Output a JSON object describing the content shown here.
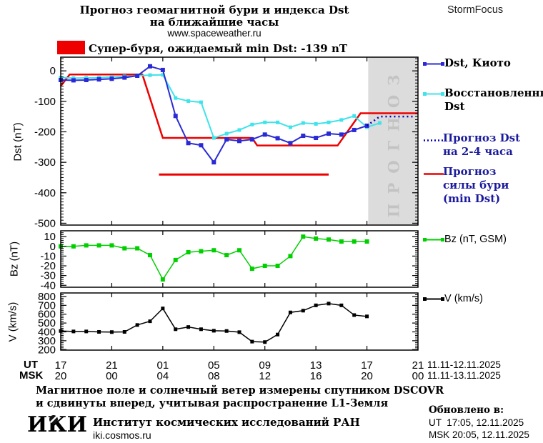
{
  "header": {
    "title_line1": "Прогноз геомагнитной бури и индекса Dst",
    "title_line2": "на ближайшие часы",
    "website": "www.spaceweather.ru",
    "brand": "StormFocus"
  },
  "warning": {
    "label": "Супер-буря, ожидаемый min Dst: -139 nT",
    "color": "#ee0000"
  },
  "forecast_band": {
    "label": "ПРОГНОЗ",
    "start_hour": 24.1,
    "fill": "#dcdcdc",
    "text_color": "#c3c3c3"
  },
  "legend_main": [
    {
      "label": "Dst, Киото",
      "color": "#2a2ad4",
      "text_color": "#000000"
    },
    {
      "label": "Восстановленный\nDst",
      "color": "#3fe3ea",
      "text_color": "#000000"
    },
    {
      "label": "Прогноз Dst\nна 2-4 часа",
      "color": "#0000bb",
      "text_color": "#1b1b9e"
    },
    {
      "label": "Прогноз\nсилы бури\n(min Dst)",
      "color": "#ee0000",
      "text_color": "#1b1b9e"
    }
  ],
  "legend_bz": {
    "label": "Bz (nT, GSM)",
    "color": "#00cf00"
  },
  "legend_v": {
    "label": "V (km/s)",
    "color": "#000000"
  },
  "xaxis": {
    "ut_label": "UT",
    "msk_label": "MSK",
    "hours_span": 28,
    "tick_hours": [
      0,
      4,
      8,
      12,
      16,
      20,
      24,
      28
    ],
    "ut_ticks": [
      "17",
      "21",
      "01",
      "05",
      "09",
      "13",
      "17",
      "21"
    ],
    "msk_ticks": [
      "20",
      "00",
      "04",
      "08",
      "12",
      "16",
      "20",
      "00"
    ],
    "ut_range": "11.11-12.11.2025",
    "msk_range": "11.11-13.11.2025"
  },
  "chart_data": [
    {
      "type": "line",
      "panel": "dst",
      "ylabel": "Dst (nT)",
      "ylim": [
        -506,
        45
      ],
      "yticks": [
        0,
        -100,
        -200,
        -300,
        -400,
        -500
      ],
      "series": [
        {
          "name": "Порог супер-бури",
          "color": "#ee0000",
          "width": 3,
          "x": [
            7.7,
            21.0
          ],
          "values": [
            -340,
            -340
          ]
        },
        {
          "name": "Прогноз силы бури (min Dst)",
          "color": "#ee0000",
          "width": 2.5,
          "x": [
            0,
            0.7,
            6.4,
            8.0,
            15.0,
            15.4,
            21.7,
            23.5,
            28
          ],
          "values": [
            -50,
            -12,
            -12,
            -220,
            -220,
            -245,
            -245,
            -139,
            -139
          ]
        },
        {
          "name": "Восстановленный Dst",
          "color": "#3fe3ea",
          "width": 2,
          "marker": "square",
          "marker_size": 5,
          "x": [
            0,
            1,
            2,
            3,
            4,
            5,
            6,
            7,
            8,
            9,
            10,
            11,
            12,
            13,
            14,
            15,
            16,
            17,
            18,
            19,
            20,
            21,
            22,
            23,
            24,
            25
          ],
          "values": [
            -22,
            -24,
            -23,
            -22,
            -20,
            -18,
            -16,
            -14,
            -13,
            -89,
            -99,
            -103,
            -220,
            -206,
            -194,
            -176,
            -169,
            -169,
            -185,
            -171,
            -174,
            -169,
            -161,
            -148,
            -185,
            -171
          ]
        },
        {
          "name": "Dst, Киото",
          "color": "#2a2ad4",
          "width": 2,
          "marker": "square",
          "marker_size": 6,
          "x": [
            0,
            1,
            2,
            3,
            4,
            5,
            6,
            7,
            8,
            9,
            10,
            11,
            12,
            13,
            14,
            15,
            16,
            17,
            18,
            19,
            20,
            21,
            22,
            23,
            24
          ],
          "values": [
            -30,
            -31,
            -30,
            -28,
            -26,
            -22,
            -16,
            15,
            3,
            -148,
            -237,
            -244,
            -300,
            -225,
            -230,
            -225,
            -209,
            -221,
            -237,
            -213,
            -220,
            -206,
            -209,
            -194,
            -180
          ]
        },
        {
          "name": "Прогноз Dst на 2-4 часа",
          "color": "#0000bb",
          "width": 2.5,
          "dash": "2 4",
          "x": [
            24,
            25,
            27.6
          ],
          "values": [
            -180,
            -150,
            -150
          ]
        }
      ]
    },
    {
      "type": "line",
      "panel": "bz",
      "ylabel": "Bz (nT)",
      "ylim": [
        -42,
        16
      ],
      "yticks": [
        10,
        0,
        -10,
        -20,
        -30,
        -40
      ],
      "series": [
        {
          "name": "Bz (nT, GSM)",
          "color": "#00cf00",
          "width": 1.5,
          "marker": "square",
          "marker_size": 6,
          "x": [
            0,
            1,
            2,
            3,
            4,
            5,
            6,
            7,
            8,
            9,
            10,
            11,
            12,
            13,
            14,
            15,
            16,
            17,
            18,
            19,
            20,
            21,
            22,
            23,
            24
          ],
          "values": [
            0,
            0,
            1,
            1,
            1,
            -2,
            -2,
            -9,
            -34,
            -14,
            -6,
            -5,
            -4,
            -9,
            -4,
            -23,
            -20,
            -20,
            -10,
            10,
            8,
            7,
            5,
            5,
            5
          ]
        }
      ]
    },
    {
      "type": "line",
      "panel": "v",
      "ylabel": "V (km/s)",
      "ylim": [
        194,
        840
      ],
      "yticks": [
        800,
        700,
        600,
        500,
        400,
        300,
        200
      ],
      "series": [
        {
          "name": "V (km/s)",
          "color": "#000000",
          "width": 1.5,
          "marker": "square",
          "marker_size": 5,
          "x": [
            0,
            1,
            2,
            3,
            4,
            5,
            6,
            7,
            8,
            9,
            10,
            11,
            12,
            13,
            14,
            15,
            16,
            17,
            18,
            19,
            20,
            21,
            22,
            23,
            24
          ],
          "values": [
            410,
            405,
            405,
            400,
            398,
            400,
            478,
            520,
            665,
            430,
            455,
            430,
            413,
            410,
            397,
            290,
            285,
            370,
            620,
            640,
            700,
            720,
            700,
            590,
            575
          ]
        }
      ]
    }
  ],
  "footer": {
    "note_line1": "Магнитное поле и солнечный ветер измерены спутником DSCOVR",
    "note_line2": "и сдвинуты вперед, учитывая распространение L1-Земля",
    "logo_text": "ИКИ",
    "institute": "Институт космических исследований РАН",
    "institute_url": "iki.cosmos.ru",
    "updated_heading": "Обновлено в:",
    "updated_ut": "UT  17:05, 12.11.2025",
    "updated_msk": "MSK 20:05, 12.11.2025"
  }
}
